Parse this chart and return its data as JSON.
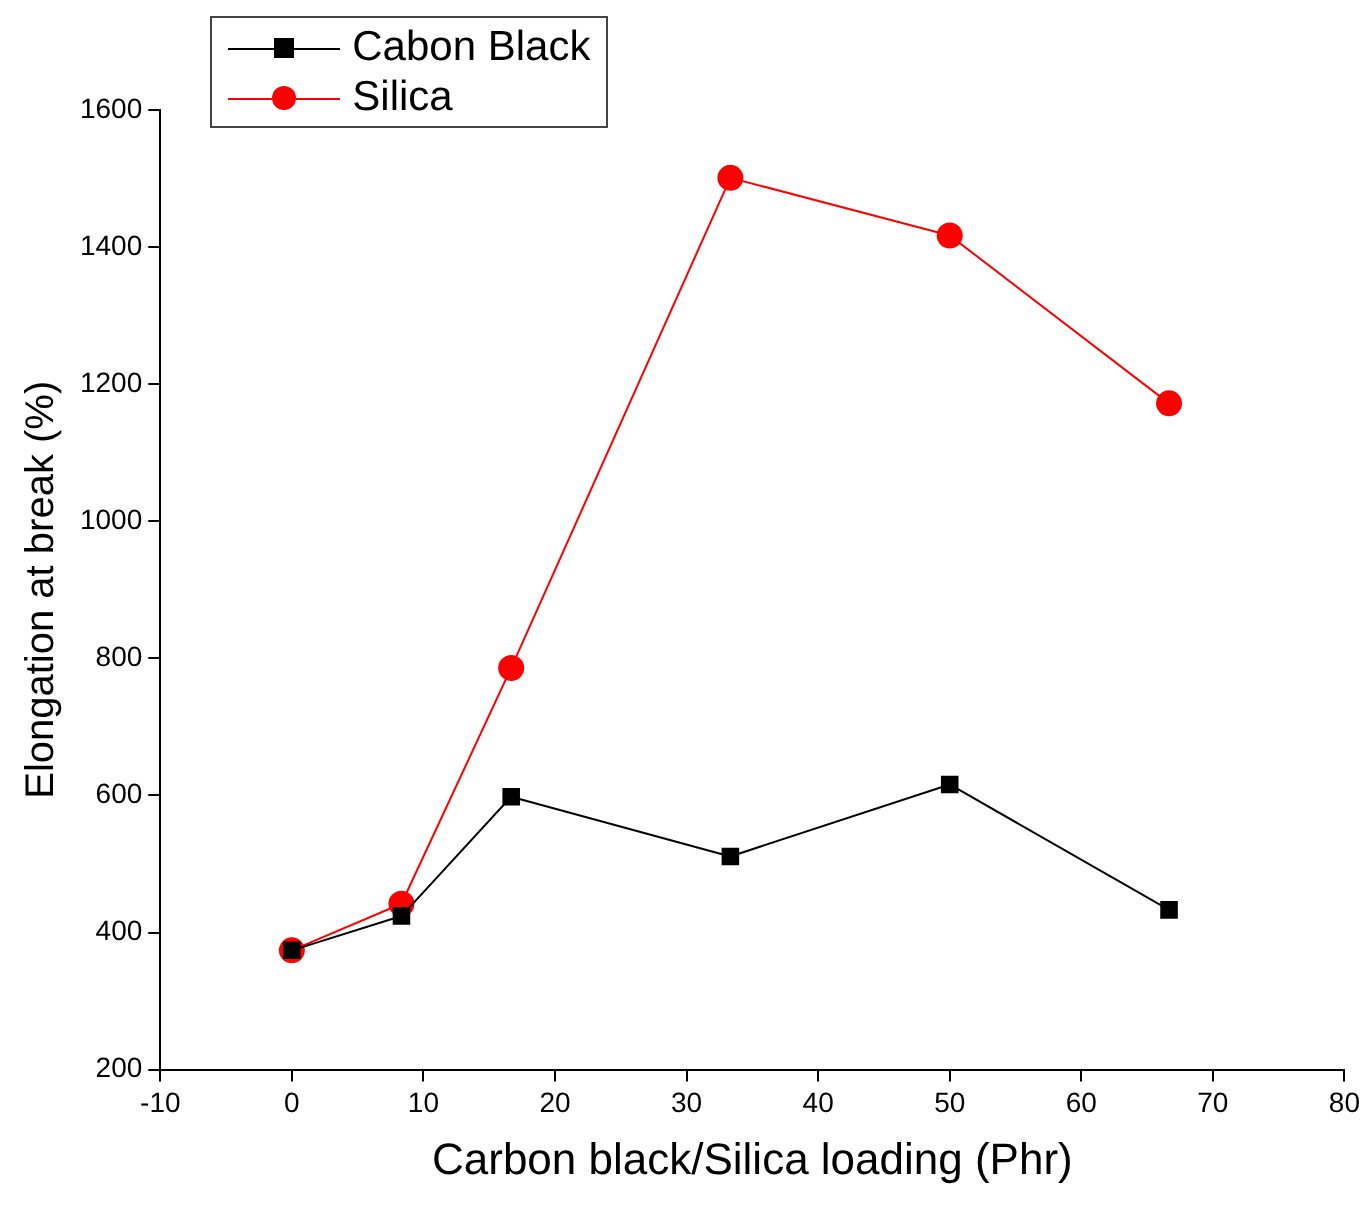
{
  "chart_data": {
    "type": "line",
    "xlabel": "Carbon black/Silica loading (Phr)",
    "ylabel": "Elongation at break (%)",
    "x": [
      0,
      8.33,
      16.67,
      33.33,
      50,
      66.67
    ],
    "series": [
      {
        "name": "Cabon Black",
        "color": "#000000",
        "marker": "square",
        "values": [
          374,
          424,
          598,
          511,
          616,
          433
        ]
      },
      {
        "name": "Silica",
        "color": "#ff0000",
        "marker": "circle",
        "values": [
          374,
          442,
          786,
          1501,
          1417,
          1172
        ]
      }
    ],
    "xlim": [
      -10,
      80
    ],
    "xticks": [
      -10,
      0,
      10,
      20,
      30,
      40,
      50,
      60,
      70,
      80
    ],
    "ylim": [
      200,
      1600
    ],
    "yticks": [
      200,
      400,
      600,
      800,
      1000,
      1200,
      1400,
      1600
    ],
    "grid": false,
    "legend": "top left",
    "line_style": "solid"
  }
}
